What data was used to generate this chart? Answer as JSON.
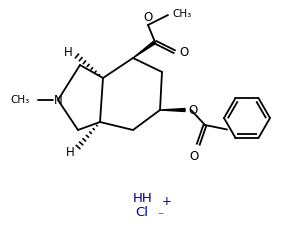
{
  "background_color": "#ffffff",
  "bond_color": "#000000",
  "hh_color": "#00008B",
  "cl_color": "#00008B",
  "font_size": 8.5,
  "fig_width": 3.06,
  "fig_height": 2.46,
  "dpi": 100,
  "xlim": [
    0,
    306
  ],
  "ylim": [
    0,
    246
  ]
}
